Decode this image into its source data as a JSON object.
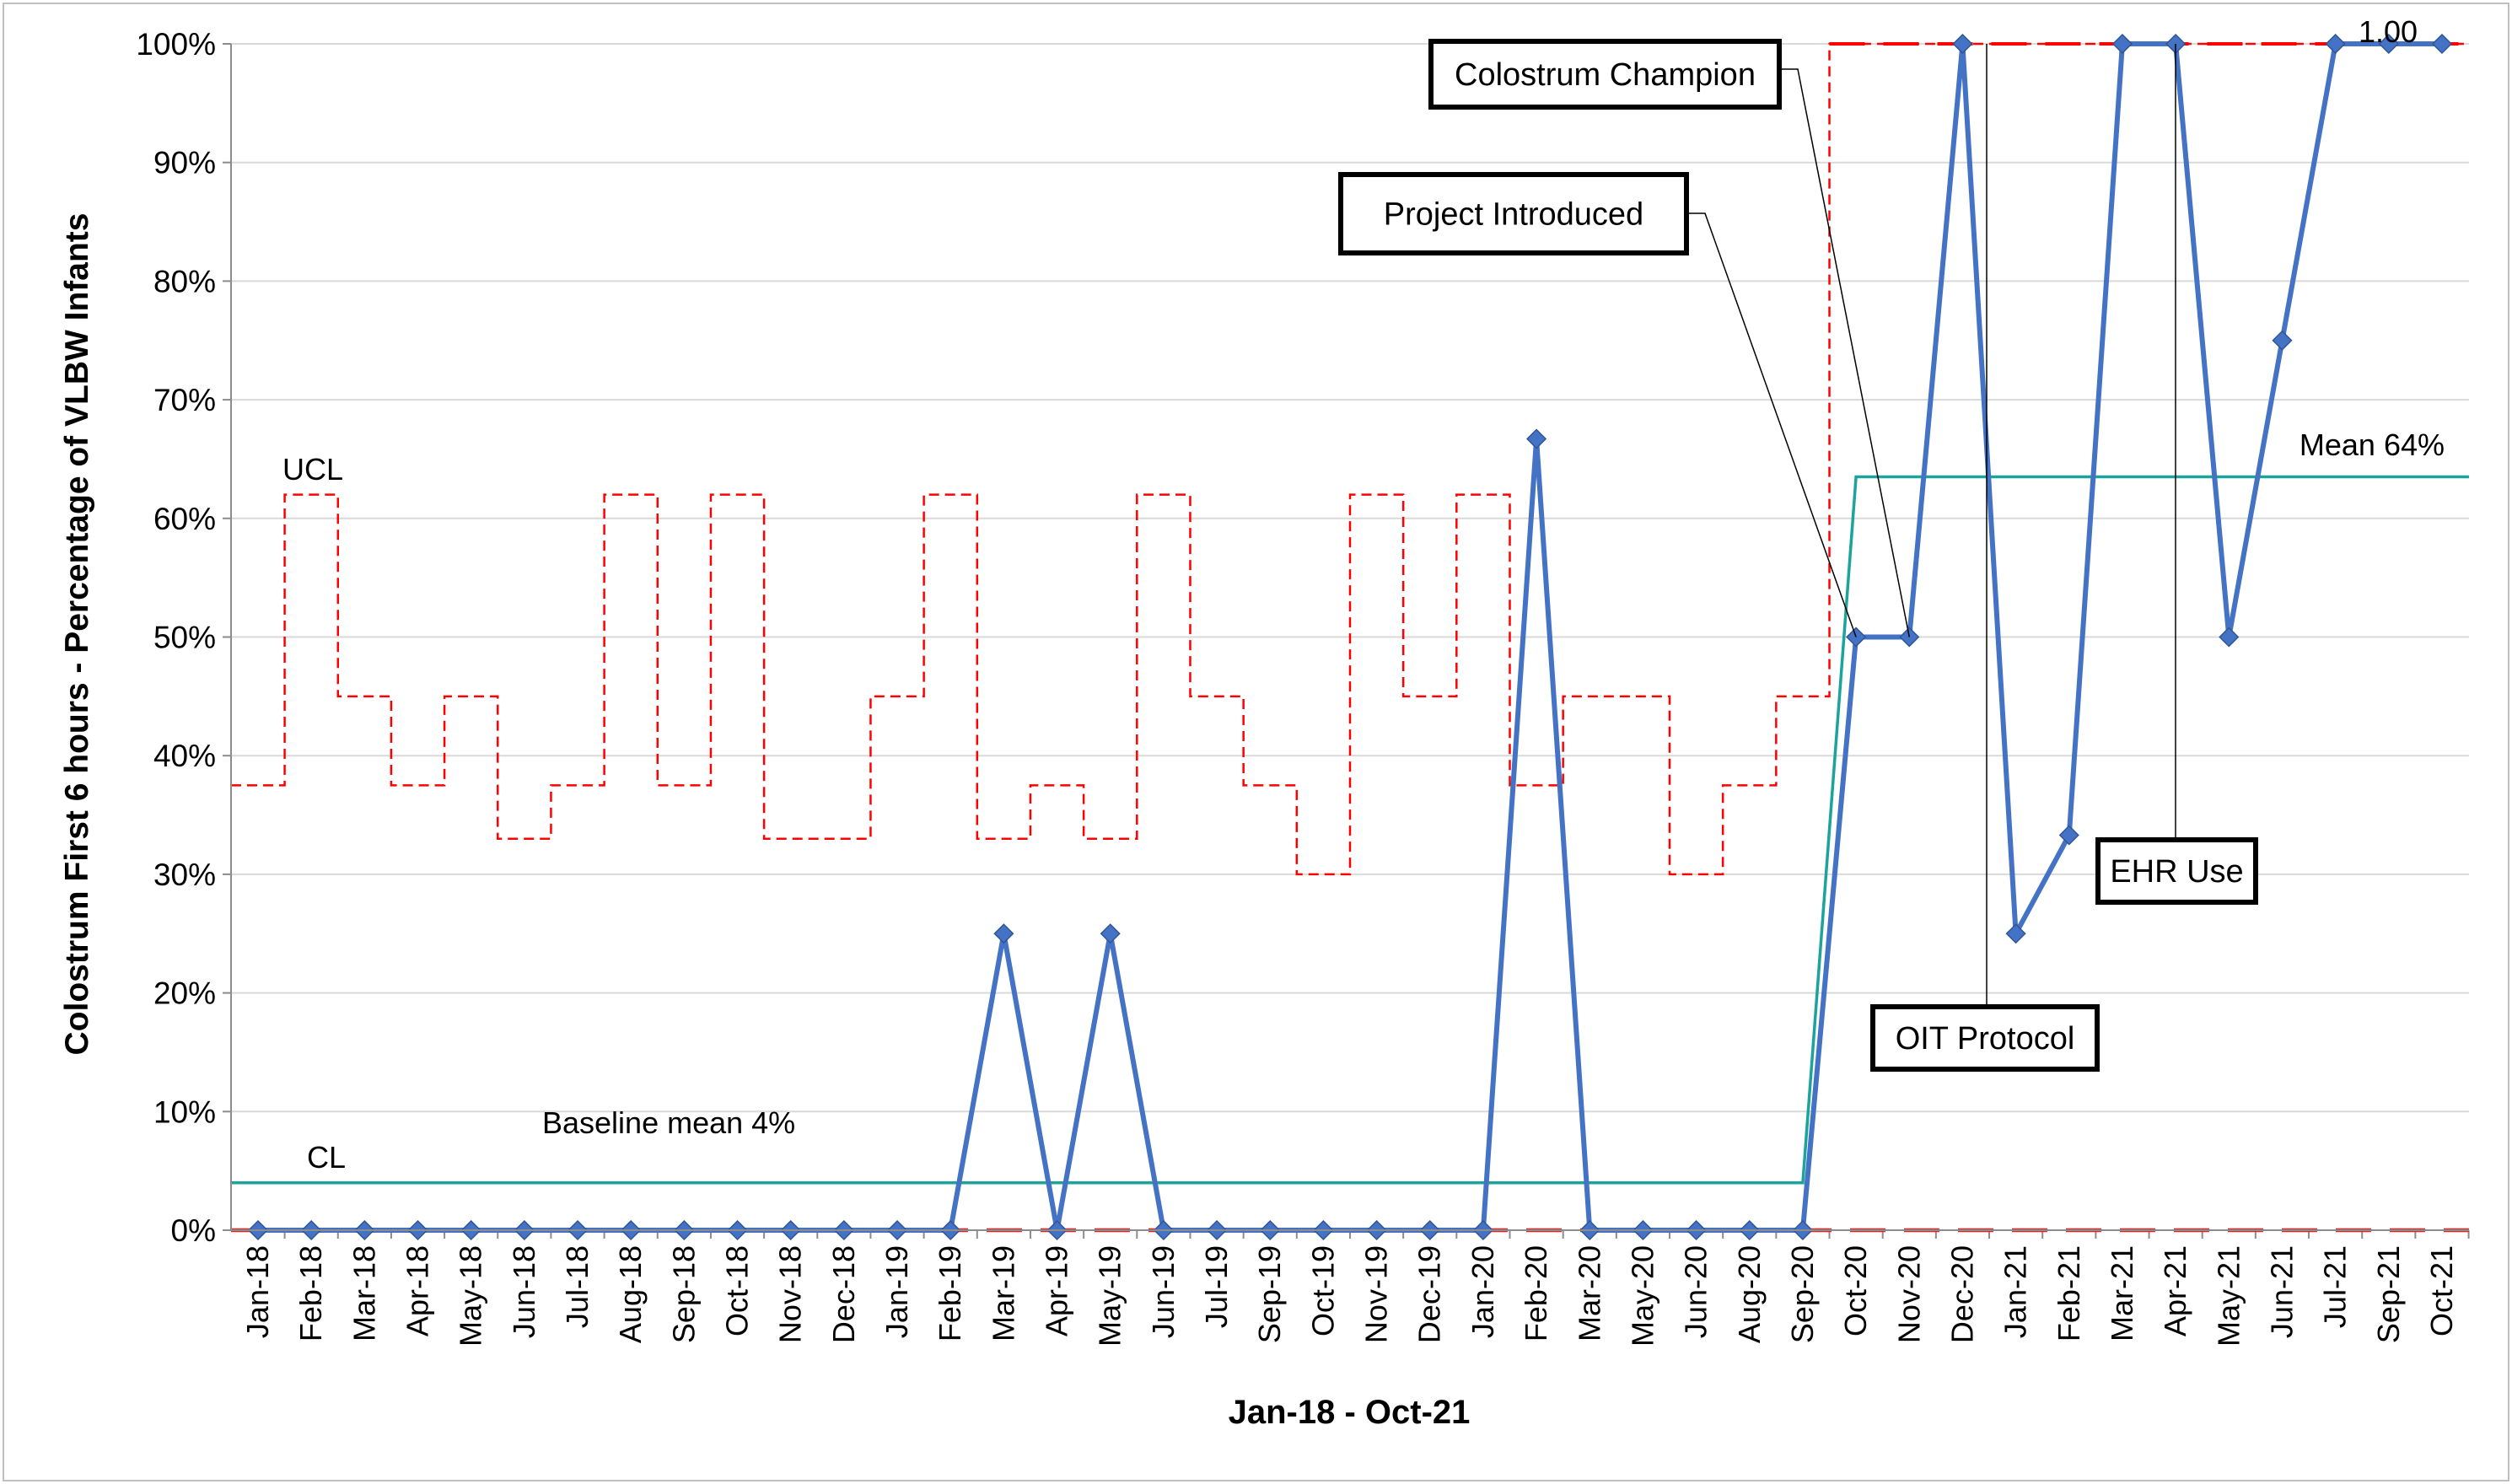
{
  "chart_data": {
    "type": "line",
    "xlabel": "Jan-18 - Oct-21",
    "ylabel": "Colostrum First 6 hours - Percentage of VLBW Infants",
    "ylim": [
      0,
      100
    ],
    "y_ticks": [
      "0%",
      "10%",
      "20%",
      "30%",
      "40%",
      "50%",
      "60%",
      "70%",
      "80%",
      "90%",
      "100%"
    ],
    "grid": "horizontal",
    "categories": [
      "Jan-18",
      "Feb-18",
      "Mar-18",
      "Apr-18",
      "May-18",
      "Jun-18",
      "Jul-18",
      "Aug-18",
      "Sep-18",
      "Oct-18",
      "Nov-18",
      "Dec-18",
      "Jan-19",
      "Feb-19",
      "Mar-19",
      "Apr-19",
      "May-19",
      "Jun-19",
      "Jul-19",
      "Sep-19",
      "Oct-19",
      "Nov-19",
      "Dec-19",
      "Jan-20",
      "Feb-20",
      "Mar-20",
      "May-20",
      "Jun-20",
      "Aug-20",
      "Sep-20",
      "Oct-20",
      "Nov-20",
      "Dec-20",
      "Jan-21",
      "Feb-21",
      "Mar-21",
      "Apr-21",
      "May-21",
      "Jun-21",
      "Jul-21",
      "Sep-21",
      "Oct-21"
    ],
    "series": [
      {
        "values": [
          0,
          0,
          0,
          0,
          0,
          0,
          0,
          0,
          0,
          0,
          0,
          0,
          0,
          0,
          25,
          0,
          25,
          0,
          0,
          0,
          0,
          0,
          0,
          0,
          66.7,
          0,
          0,
          0,
          0,
          0,
          50,
          50,
          100,
          25,
          33.3,
          100,
          100,
          50,
          75,
          100,
          100,
          100
        ],
        "color": "#4472C4"
      }
    ],
    "ucl": {
      "values": [
        37.5,
        62,
        45,
        37.5,
        45,
        33,
        37.5,
        62,
        37.5,
        62,
        33,
        33,
        45,
        62,
        33,
        37.5,
        33,
        62,
        45,
        37.5,
        30,
        62,
        45,
        62,
        37.5,
        45,
        45,
        30,
        37.5,
        45,
        100,
        100,
        100,
        100,
        100,
        100,
        100,
        100,
        100,
        100,
        100,
        100
      ],
      "color": "#FF0000"
    },
    "lcl": {
      "value": 0,
      "color": "#E32222"
    },
    "center_line": {
      "values": [
        4,
        4,
        4,
        4,
        4,
        4,
        4,
        4,
        4,
        4,
        4,
        4,
        4,
        4,
        4,
        4,
        4,
        4,
        4,
        4,
        4,
        4,
        4,
        4,
        4,
        4,
        4,
        4,
        4,
        4,
        63.5,
        63.5,
        63.5,
        63.5,
        63.5,
        63.5,
        63.5,
        63.5,
        63.5,
        63.5,
        63.5,
        63.5
      ],
      "color": "#1BA39C"
    },
    "text_labels": {
      "ucl": "UCL",
      "cl": "CL",
      "baseline": "Baseline mean 4%",
      "mean": "Mean 64%",
      "last_value": "1.00"
    },
    "annotations": [
      {
        "text": "Colostrum Champion",
        "target": "Nov-20"
      },
      {
        "text": "Project Introduced",
        "target": "Oct-20"
      },
      {
        "text": "OIT Protocol",
        "target": "Dec-20"
      },
      {
        "text": "EHR Use",
        "target": "Apr-21"
      }
    ]
  }
}
